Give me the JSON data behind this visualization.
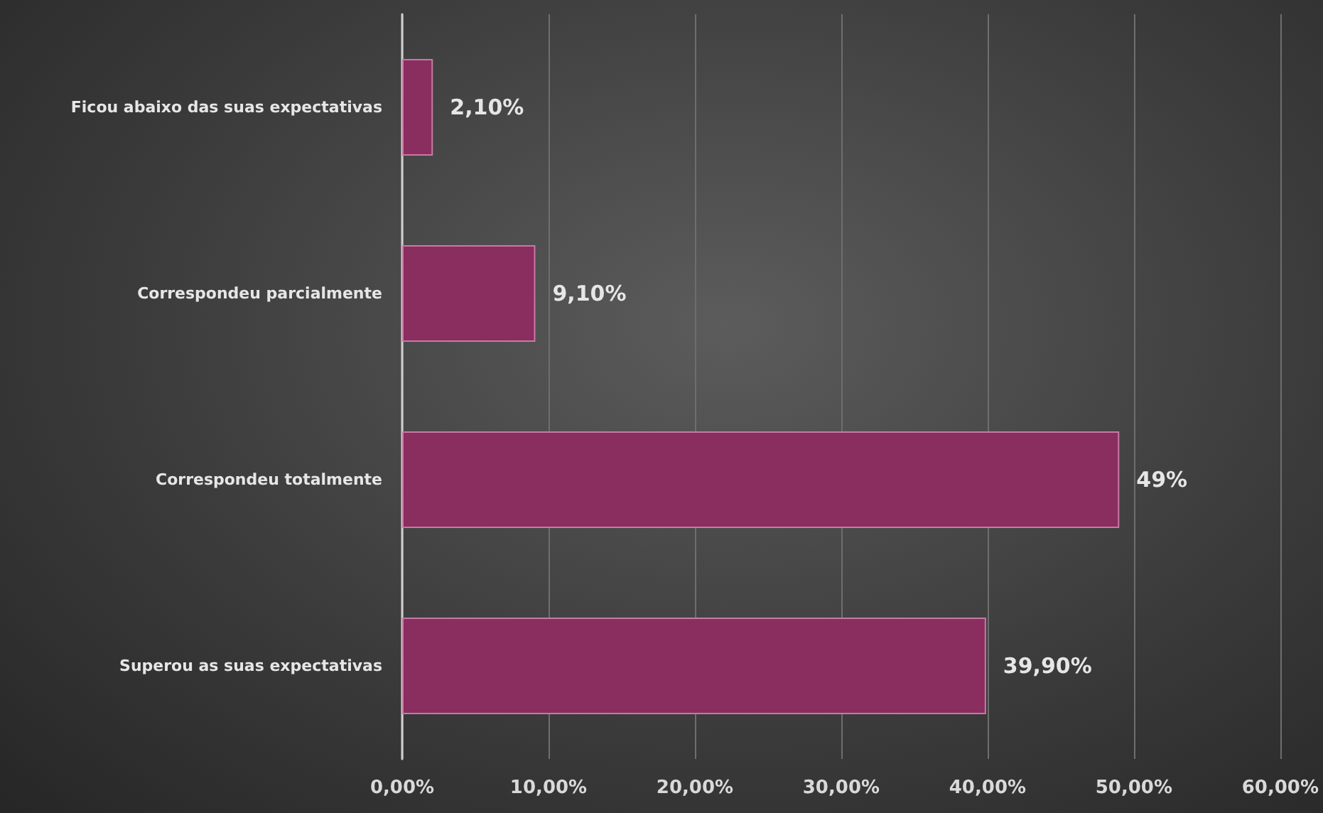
{
  "chart_data": {
    "type": "bar",
    "orientation": "horizontal",
    "categories": [
      "Ficou abaixo das suas expectativas",
      "Correspondeu parcialmente",
      "Correspondeu totalmente",
      "Superou as suas expectativas"
    ],
    "values": [
      2.1,
      9.1,
      49,
      39.9
    ],
    "value_labels": [
      "2,10%",
      "9,10%",
      "49%",
      "39,90%"
    ],
    "color": "#8a2d5f",
    "xlim": [
      0,
      60
    ],
    "xticks": [
      {
        "value": 0,
        "label": "0,00%"
      },
      {
        "value": 10,
        "label": "10,00%"
      },
      {
        "value": 20,
        "label": "20,00%"
      },
      {
        "value": 30,
        "label": "30,00%"
      },
      {
        "value": 40,
        "label": "40,00%"
      },
      {
        "value": 50,
        "label": "50,00%"
      },
      {
        "value": 60,
        "label": "60,00%"
      }
    ],
    "grid": "x"
  }
}
